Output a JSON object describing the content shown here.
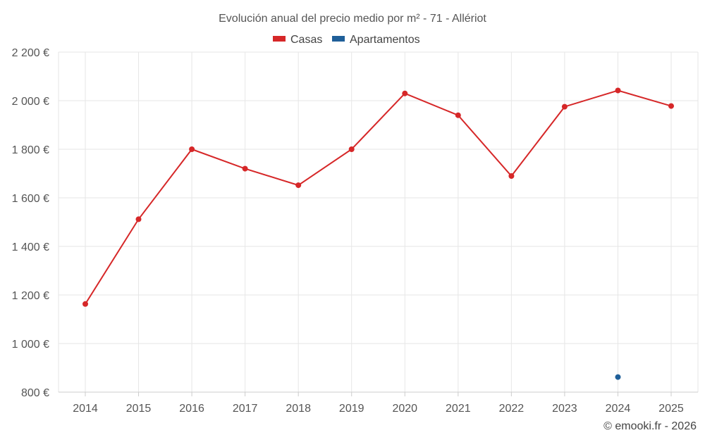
{
  "chart_data": {
    "type": "line",
    "title": "Evolución anual del precio medio por m² - 71 - Allériot",
    "categories": [
      "2014",
      "2015",
      "2016",
      "2017",
      "2018",
      "2019",
      "2020",
      "2021",
      "2022",
      "2023",
      "2024",
      "2025"
    ],
    "series": [
      {
        "name": "Casas",
        "color": "#d62728",
        "values": [
          1163,
          1512,
          1800,
          1720,
          1652,
          1800,
          2030,
          1940,
          1690,
          1975,
          2042,
          1978
        ]
      },
      {
        "name": "Apartamentos",
        "color": "#1f5f99",
        "values": [
          null,
          null,
          null,
          null,
          null,
          null,
          null,
          null,
          null,
          null,
          862,
          null
        ]
      }
    ],
    "ylim": [
      800,
      2200
    ],
    "yticks": [
      800,
      1000,
      1200,
      1400,
      1600,
      1800,
      2000,
      2200
    ],
    "ytick_labels": [
      "800 €",
      "1 000 €",
      "1 200 €",
      "1 400 €",
      "1 600 €",
      "1 800 €",
      "2 000 €",
      "2 200 €"
    ],
    "xlabel": "",
    "ylabel": "",
    "grid": true,
    "legend_position": "top-center"
  },
  "credit": "© emooki.fr - 2026"
}
